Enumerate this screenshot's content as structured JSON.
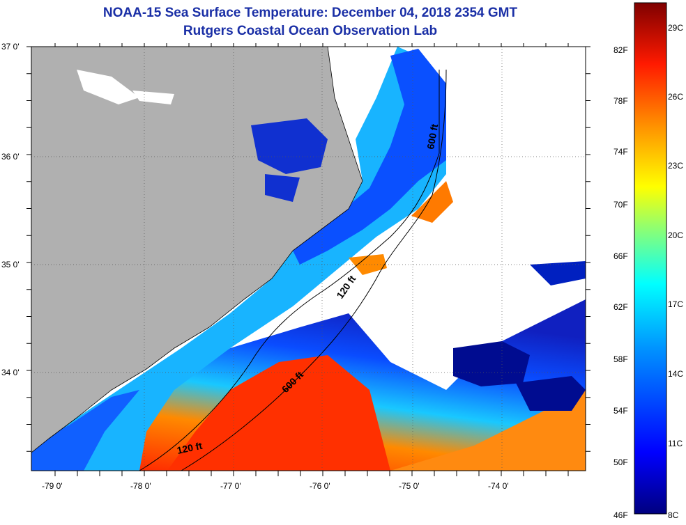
{
  "header": {
    "title": "NOAA-15 Sea Surface Temperature:  December 04, 2018 2354 GMT",
    "subtitle": "Rutgers Coastal Ocean Observation Lab"
  },
  "map": {
    "lat_labels": [
      "37 0'",
      "36 0'",
      "35 0'",
      "34 0'"
    ],
    "lon_labels": [
      "-79 0'",
      "-78 0'",
      "-77 0'",
      "-76 0'",
      "-75 0'",
      "-74 0'"
    ],
    "isobath_labels": [
      {
        "name": "isobath-600ft-north",
        "text": "600 ft"
      },
      {
        "name": "isobath-120ft-mid",
        "text": "120 ft"
      },
      {
        "name": "isobath-600ft-south",
        "text": "600 ft"
      },
      {
        "name": "isobath-120ft-south",
        "text": "120 ft"
      }
    ],
    "colors": {
      "land": "#b0b0b0",
      "cloud": "#ffffff",
      "frame": "#000000"
    }
  },
  "colorbar": {
    "fahrenheit": [
      "82F",
      "78F",
      "74F",
      "70F",
      "66F",
      "62F",
      "58F",
      "54F",
      "50F",
      "46F"
    ],
    "celsius": [
      "29C",
      "26C",
      "23C",
      "20C",
      "17C",
      "14C",
      "11C",
      "8C"
    ],
    "colors": [
      "#00007f",
      "#0000ff",
      "#007fff",
      "#00ffff",
      "#7fff7f",
      "#ffff00",
      "#ff7f00",
      "#ff0000",
      "#7f0000"
    ]
  }
}
